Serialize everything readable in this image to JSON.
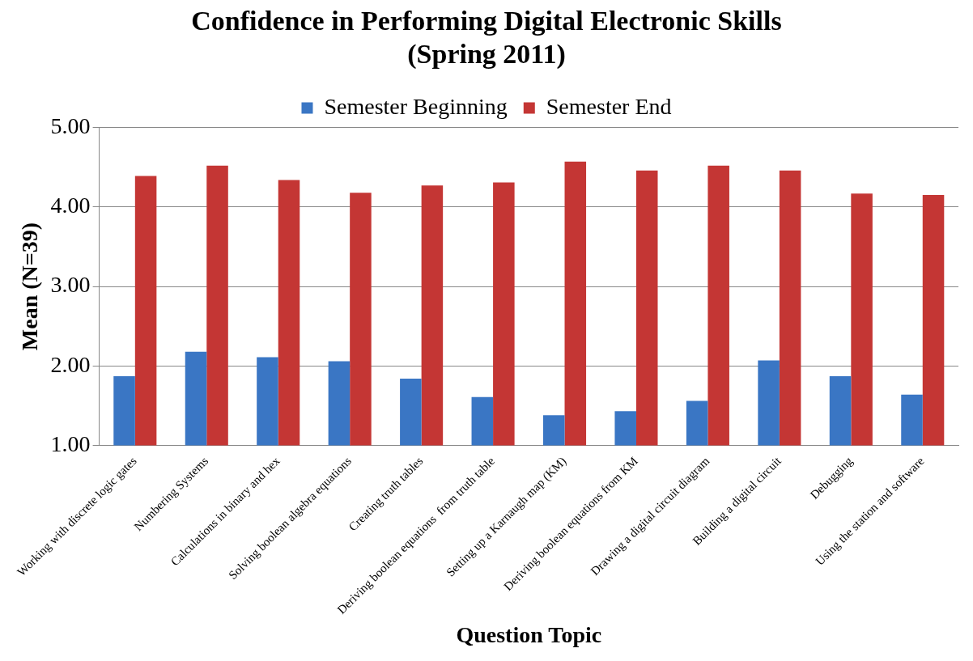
{
  "chart_data": {
    "type": "bar",
    "title": [
      "Confidence in Performing Digital Electronic Skills",
      "(Spring 2011)"
    ],
    "xlabel": "Question Topic",
    "ylabel": "Mean (N=39)",
    "categories": [
      "Working with discrete logic gates",
      "Numbering Systems",
      "Calculations in binary and hex",
      "Solving boolean algebra equations",
      "Creating truth tables",
      "Deriving boolean equations  from truth table",
      "Setting up a Karnaugh map (KM)",
      "Deriving boolean equations from KM",
      "Drawing a digital circuit diagram",
      "Building a digital circuit",
      "Debugging",
      "Using the station and software"
    ],
    "series": [
      {
        "name": "Semester Beginning",
        "color": "#3a76c4",
        "values": [
          1.87,
          2.18,
          2.11,
          2.06,
          1.84,
          1.61,
          1.38,
          1.43,
          1.56,
          2.07,
          1.87,
          1.64
        ]
      },
      {
        "name": "Semester End",
        "color": "#c43634",
        "values": [
          4.39,
          4.52,
          4.34,
          4.18,
          4.27,
          4.31,
          4.57,
          4.46,
          4.52,
          4.46,
          4.17,
          4.15
        ]
      }
    ],
    "ylim": [
      1,
      5
    ],
    "yticks": [
      {
        "value": 1,
        "label": "1.00"
      },
      {
        "value": 2,
        "label": "2.00"
      },
      {
        "value": 3,
        "label": "3.00"
      },
      {
        "value": 4,
        "label": "4.00"
      },
      {
        "value": 5,
        "label": "5.00"
      }
    ],
    "grid": "y",
    "legend": "top"
  }
}
